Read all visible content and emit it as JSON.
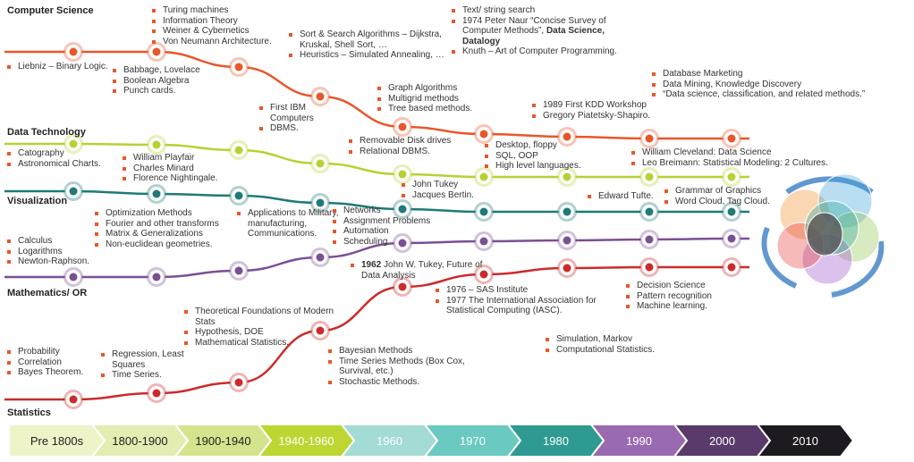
{
  "tracks": [
    {
      "name": "Computer Science",
      "color": "#e8572a"
    },
    {
      "name": "Data Technology",
      "color": "#b9d032"
    },
    {
      "name": "Visualization",
      "color": "#1f7a78"
    },
    {
      "name": "Mathematics/ OR",
      "color": "#7a4f96"
    },
    {
      "name": "Statistics",
      "color": "#cc2b2b"
    }
  ],
  "notes": [
    {
      "items": [
        "Liebniz – Binary Logic."
      ]
    },
    {
      "items": [
        "Turing machines",
        "Information Theory",
        "Weiner & Cybernetics",
        "Von Neumann Architecture."
      ]
    },
    {
      "items": [
        "Babbage, Lovelace",
        "Boolean Algebra",
        "Punch cards."
      ]
    },
    {
      "items": [
        "Sort & Search Algorithms – Dijkstra, Kruskal, Shell Sort, …",
        "Heuristics – Simulated Annealing, …"
      ]
    },
    {
      "items": [
        "First IBM Computers",
        "DBMS."
      ]
    },
    {
      "items": [
        "Graph Algorithms",
        "Multigrid methods",
        "Tree based methods."
      ]
    },
    {
      "items": [
        "Text/ string search",
        {
          "text": "1974 Peter Naur “Concise Survey of Computer Methods”, ",
          "bold": "Data Science, Datalogy"
        },
        "Knuth – Art of Computer Programming."
      ]
    },
    {
      "items": [
        "Database Marketing",
        "Data Mining, Knowledge Discovery",
        "“Data science, classification, and related methods.”"
      ]
    },
    {
      "items": [
        "1989 First KDD Workshop",
        "Gregory Piatetsky-Shapiro."
      ]
    },
    {
      "items": [
        "Removable Disk drives",
        "Relational DBMS."
      ]
    },
    {
      "items": [
        "Desktop, floppy",
        "SQL, OOP",
        "High level languages."
      ]
    },
    {
      "items": [
        "William Cleveland: Data Science",
        "Leo Breimann: Statistical Modeling: 2 Cultures."
      ]
    },
    {
      "items": [
        "Catography",
        "Astronomical Charts."
      ]
    },
    {
      "items": [
        "William Playfair",
        "Charles Minard",
        "Florence Nightingale."
      ]
    },
    {
      "items": [
        "John Tukey",
        "Jacques Bertin."
      ]
    },
    {
      "items": [
        "Edward Tufte."
      ]
    },
    {
      "items": [
        "Grammar of Graphics",
        "Word Cloud, Tag Cloud."
      ]
    },
    {
      "items": [
        "Optimization Methods",
        "Fourier and other transforms",
        "Matrix & Generalizations",
        "Non-euclidean geometries."
      ]
    },
    {
      "items": [
        "Applications to Military, manufacturing, Communications."
      ]
    },
    {
      "items": [
        "Networks",
        "Assignment Problems",
        "Automation",
        "Scheduling"
      ]
    },
    {
      "items": [
        "Calculus",
        "Logarithms",
        "Newton-Raphson."
      ]
    },
    {
      "items": [
        {
          "bold": "1962",
          "text": " John W. Tukey, Future of Data Analysis"
        }
      ]
    },
    {
      "items": [
        "1976 – SAS Institute",
        "1977 The International Association for Statistical Computing (IASC)."
      ]
    },
    {
      "items": [
        "Decision Science",
        "Pattern recognition",
        "Machine learning."
      ]
    },
    {
      "items": [
        "Theoretical Foundations of Modern Stats",
        "Hypothesis, DOE",
        "Mathematical Statistics."
      ]
    },
    {
      "items": [
        "Simulation, Markov",
        "Computational Statistics."
      ]
    },
    {
      "items": [
        "Bayesian Methods",
        "Time Series Methods (Box Cox, Survival, etc.)",
        "Stochastic Methods."
      ]
    },
    {
      "items": [
        "Regression, Least Squares",
        "Time Series."
      ]
    },
    {
      "items": [
        "Probability",
        "Correlation",
        "Bayes Theorem."
      ]
    }
  ],
  "periods": [
    "Pre 1800s",
    "1800-1900",
    "1900-1940",
    "1940-1960",
    "1960",
    "1970",
    "1980",
    "1990",
    "2000",
    "2010"
  ]
}
